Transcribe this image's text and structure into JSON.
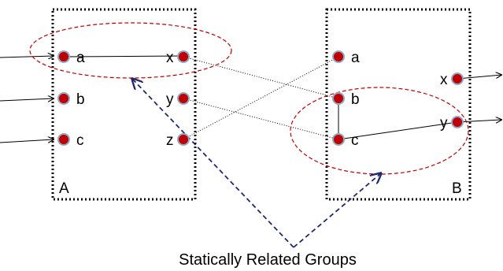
{
  "colors": {
    "port_fill": "#c00000",
    "port_stroke": "#8ea9c8",
    "group_ellipse": "#c00000",
    "caption_arrow": "#1f2a6b",
    "lines": "#000000"
  },
  "boxes": {
    "A": {
      "label": "A",
      "inputs": [
        "a",
        "b",
        "c"
      ],
      "outputs": [
        "x",
        "y",
        "z"
      ]
    },
    "B": {
      "label": "B",
      "inputs": [
        "a",
        "b",
        "c"
      ],
      "outputs": [
        "x",
        "y"
      ]
    }
  },
  "caption": "Statically Related Groups"
}
